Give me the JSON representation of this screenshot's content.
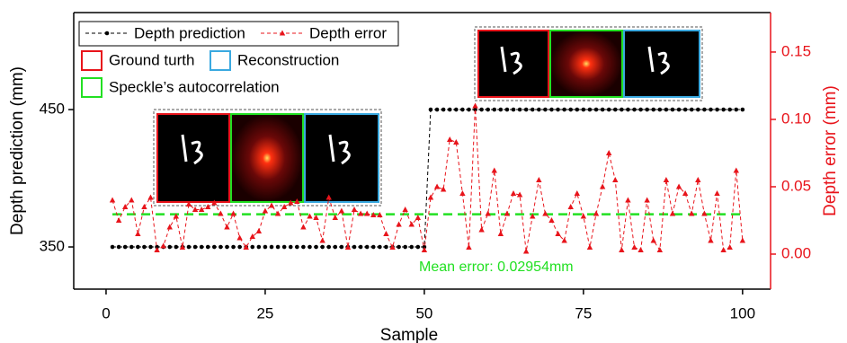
{
  "chart_data": {
    "type": "line",
    "x_label": "Sample",
    "y_label": "Depth prediction (mm)",
    "y2_label": "Depth error (mm)",
    "x": [
      1,
      2,
      3,
      4,
      5,
      6,
      7,
      8,
      9,
      10,
      11,
      12,
      13,
      14,
      15,
      16,
      17,
      18,
      19,
      20,
      21,
      22,
      23,
      24,
      25,
      26,
      27,
      28,
      29,
      30,
      31,
      32,
      33,
      34,
      35,
      36,
      37,
      38,
      39,
      40,
      41,
      42,
      43,
      44,
      45,
      46,
      47,
      48,
      49,
      50,
      51,
      52,
      53,
      54,
      55,
      56,
      57,
      58,
      59,
      60,
      61,
      62,
      63,
      64,
      65,
      66,
      67,
      68,
      69,
      70,
      71,
      72,
      73,
      74,
      75,
      76,
      77,
      78,
      79,
      80,
      81,
      82,
      83,
      84,
      85,
      86,
      87,
      88,
      89,
      90,
      91,
      92,
      93,
      94,
      95,
      96,
      97,
      98,
      99,
      100
    ],
    "series": [
      {
        "name": "Depth prediction",
        "color": "#000000",
        "marker": "circle",
        "values": [
          350,
          350,
          350,
          350,
          350,
          350,
          350,
          350,
          350,
          350,
          350,
          350,
          350,
          350,
          350,
          350,
          350,
          350,
          350,
          350,
          350,
          350,
          350,
          350,
          350,
          350,
          350,
          350,
          350,
          350,
          350,
          350,
          350,
          350,
          350,
          350,
          350,
          350,
          350,
          350,
          350,
          350,
          350,
          350,
          350,
          350,
          350,
          350,
          350,
          350,
          450,
          450,
          450,
          450,
          450,
          450,
          450,
          450,
          450,
          450,
          450,
          450,
          450,
          450,
          450,
          450,
          450,
          450,
          450,
          450,
          450,
          450,
          450,
          450,
          450,
          450,
          450,
          450,
          450,
          450,
          450,
          450,
          450,
          450,
          450,
          450,
          450,
          450,
          450,
          450,
          450,
          450,
          450,
          450,
          450,
          450,
          450,
          450,
          450,
          450
        ]
      },
      {
        "name": "Depth error",
        "color": "#e8141b",
        "marker": "triangle",
        "axis": "y2",
        "values": [
          0.04,
          0.025,
          0.035,
          0.04,
          0.015,
          0.035,
          0.042,
          0.003,
          0.006,
          0.02,
          0.028,
          0.005,
          0.037,
          0.033,
          0.033,
          0.035,
          0.038,
          0.03,
          0.02,
          0.03,
          0.012,
          0.005,
          0.013,
          0.017,
          0.032,
          0.036,
          0.03,
          0.035,
          0.038,
          0.039,
          0.02,
          0.028,
          0.027,
          0.01,
          0.042,
          0.027,
          0.032,
          0.005,
          0.033,
          0.03,
          0.03,
          0.029,
          0.029,
          0.015,
          0.005,
          0.022,
          0.033,
          0.022,
          0.027,
          0.003,
          0.042,
          0.05,
          0.048,
          0.085,
          0.083,
          0.045,
          0.005,
          0.11,
          0.018,
          0.03,
          0.062,
          0.015,
          0.03,
          0.045,
          0.044,
          0.002,
          0.028,
          0.055,
          0.03,
          0.025,
          0.015,
          0.01,
          0.035,
          0.045,
          0.028,
          0.005,
          0.03,
          0.05,
          0.075,
          0.055,
          0.003,
          0.04,
          0.005,
          0.003,
          0.04,
          0.01,
          0.003,
          0.055,
          0.03,
          0.05,
          0.045,
          0.03,
          0.055,
          0.03,
          0.01,
          0.045,
          0.003,
          0.005,
          0.062,
          0.01
        ]
      }
    ],
    "mean_line": {
      "value": 0.02954,
      "label": "Mean error: 0.02954mm",
      "color": "#22e022"
    },
    "frame_legend": [
      {
        "name": "Ground turth",
        "color": "#e8141b"
      },
      {
        "name": "Reconstruction",
        "color": "#3aa9e0"
      },
      {
        "name": "Speckle’s autocorrelation",
        "color": "#22e022"
      }
    ],
    "xlim": [
      -5.08,
      104.4
    ],
    "xticks": [
      0,
      25,
      50,
      75,
      100
    ],
    "ylim": [
      319.3,
      520.6
    ],
    "yticks": [
      350,
      450
    ],
    "y2lim": [
      -0.026,
      0.1793
    ],
    "y2ticks": [
      {
        "value": 0,
        "label": "0.00"
      },
      {
        "value": 0.05,
        "label": "0.05"
      },
      {
        "value": 0.1,
        "label": "0.10"
      },
      {
        "value": 0.15,
        "label": "0.15"
      }
    ],
    "y2_color": "#e8141b"
  }
}
